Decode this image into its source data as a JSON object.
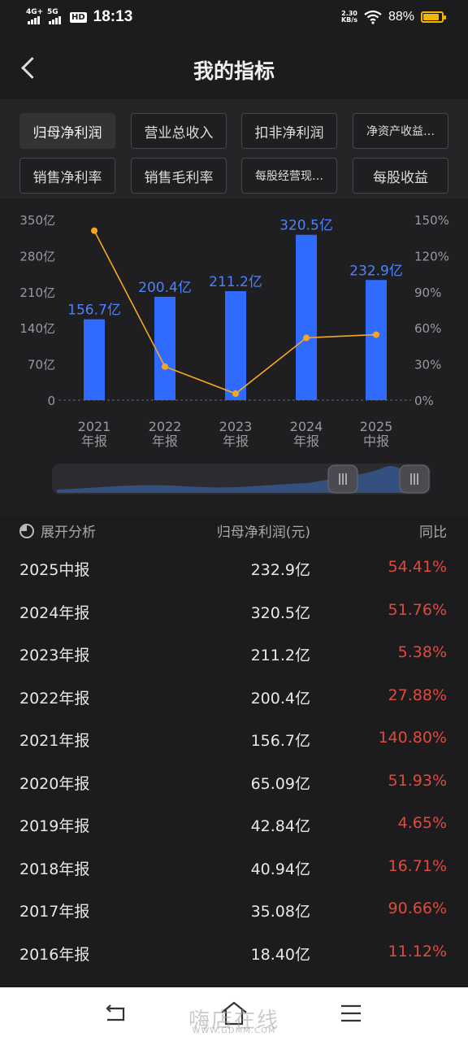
{
  "status_bar": {
    "time": "18:13",
    "network_1": "4G+",
    "network_2": "5G",
    "hd": "HD",
    "speed_value": "2.30",
    "speed_unit": "KB/s",
    "battery": "88%"
  },
  "nav": {
    "title": "我的指标"
  },
  "filters": [
    "归母净利润",
    "营业总收入",
    "扣非净利润",
    "净资产收益…",
    "销售净利率",
    "销售毛利率",
    "每股经营现…",
    "每股收益"
  ],
  "chart_data": {
    "type": "bar",
    "categories": [
      "2021\n年报",
      "2022\n年报",
      "2023\n年报",
      "2024\n年报",
      "2025\n中报"
    ],
    "category_lines": [
      [
        "2021",
        "年报"
      ],
      [
        "2022",
        "年报"
      ],
      [
        "2023",
        "年报"
      ],
      [
        "2024",
        "年报"
      ],
      [
        "2025",
        "中报"
      ]
    ],
    "series": [
      {
        "values": [
          156.7,
          200.4,
          211.2,
          320.5,
          232.9
        ],
        "labels": [
          "156.7亿",
          "200.4亿",
          "211.2亿",
          "320.5亿",
          "232.9亿"
        ],
        "color": "#2f6bff"
      },
      {
        "type": "line",
        "values": [
          140.8,
          27.88,
          5.38,
          51.76,
          54.41
        ],
        "color": "#f5a623",
        "axis": "right"
      }
    ],
    "left_axis": {
      "ticks": [
        "0",
        "70亿",
        "140亿",
        "210亿",
        "280亿",
        "350亿"
      ],
      "ylim": [
        0,
        350
      ]
    },
    "right_axis": {
      "ticks": [
        "0%",
        "30%",
        "60%",
        "90%",
        "120%",
        "150%"
      ],
      "ylim": [
        0,
        150
      ]
    }
  },
  "table": {
    "expand_label": "展开分析",
    "col_value": "归母净利润(元)",
    "col_yoy": "同比",
    "rows": [
      {
        "period": "2025中报",
        "value": "232.9亿",
        "yoy": "54.41%"
      },
      {
        "period": "2024年报",
        "value": "320.5亿",
        "yoy": "51.76%"
      },
      {
        "period": "2023年报",
        "value": "211.2亿",
        "yoy": "5.38%"
      },
      {
        "period": "2022年报",
        "value": "200.4亿",
        "yoy": "27.88%"
      },
      {
        "period": "2021年报",
        "value": "156.7亿",
        "yoy": "140.80%"
      },
      {
        "period": "2020年报",
        "value": "65.09亿",
        "yoy": "51.93%"
      },
      {
        "period": "2019年报",
        "value": "42.84亿",
        "yoy": "4.65%"
      },
      {
        "period": "2018年报",
        "value": "40.94亿",
        "yoy": "16.71%"
      },
      {
        "period": "2017年报",
        "value": "35.08亿",
        "yoy": "90.66%"
      },
      {
        "period": "2016年报",
        "value": "18.40亿",
        "yoy": "11.12%"
      }
    ]
  },
  "watermark": {
    "text": "嗨店在线",
    "url": "WWW.GDMM.COM"
  }
}
